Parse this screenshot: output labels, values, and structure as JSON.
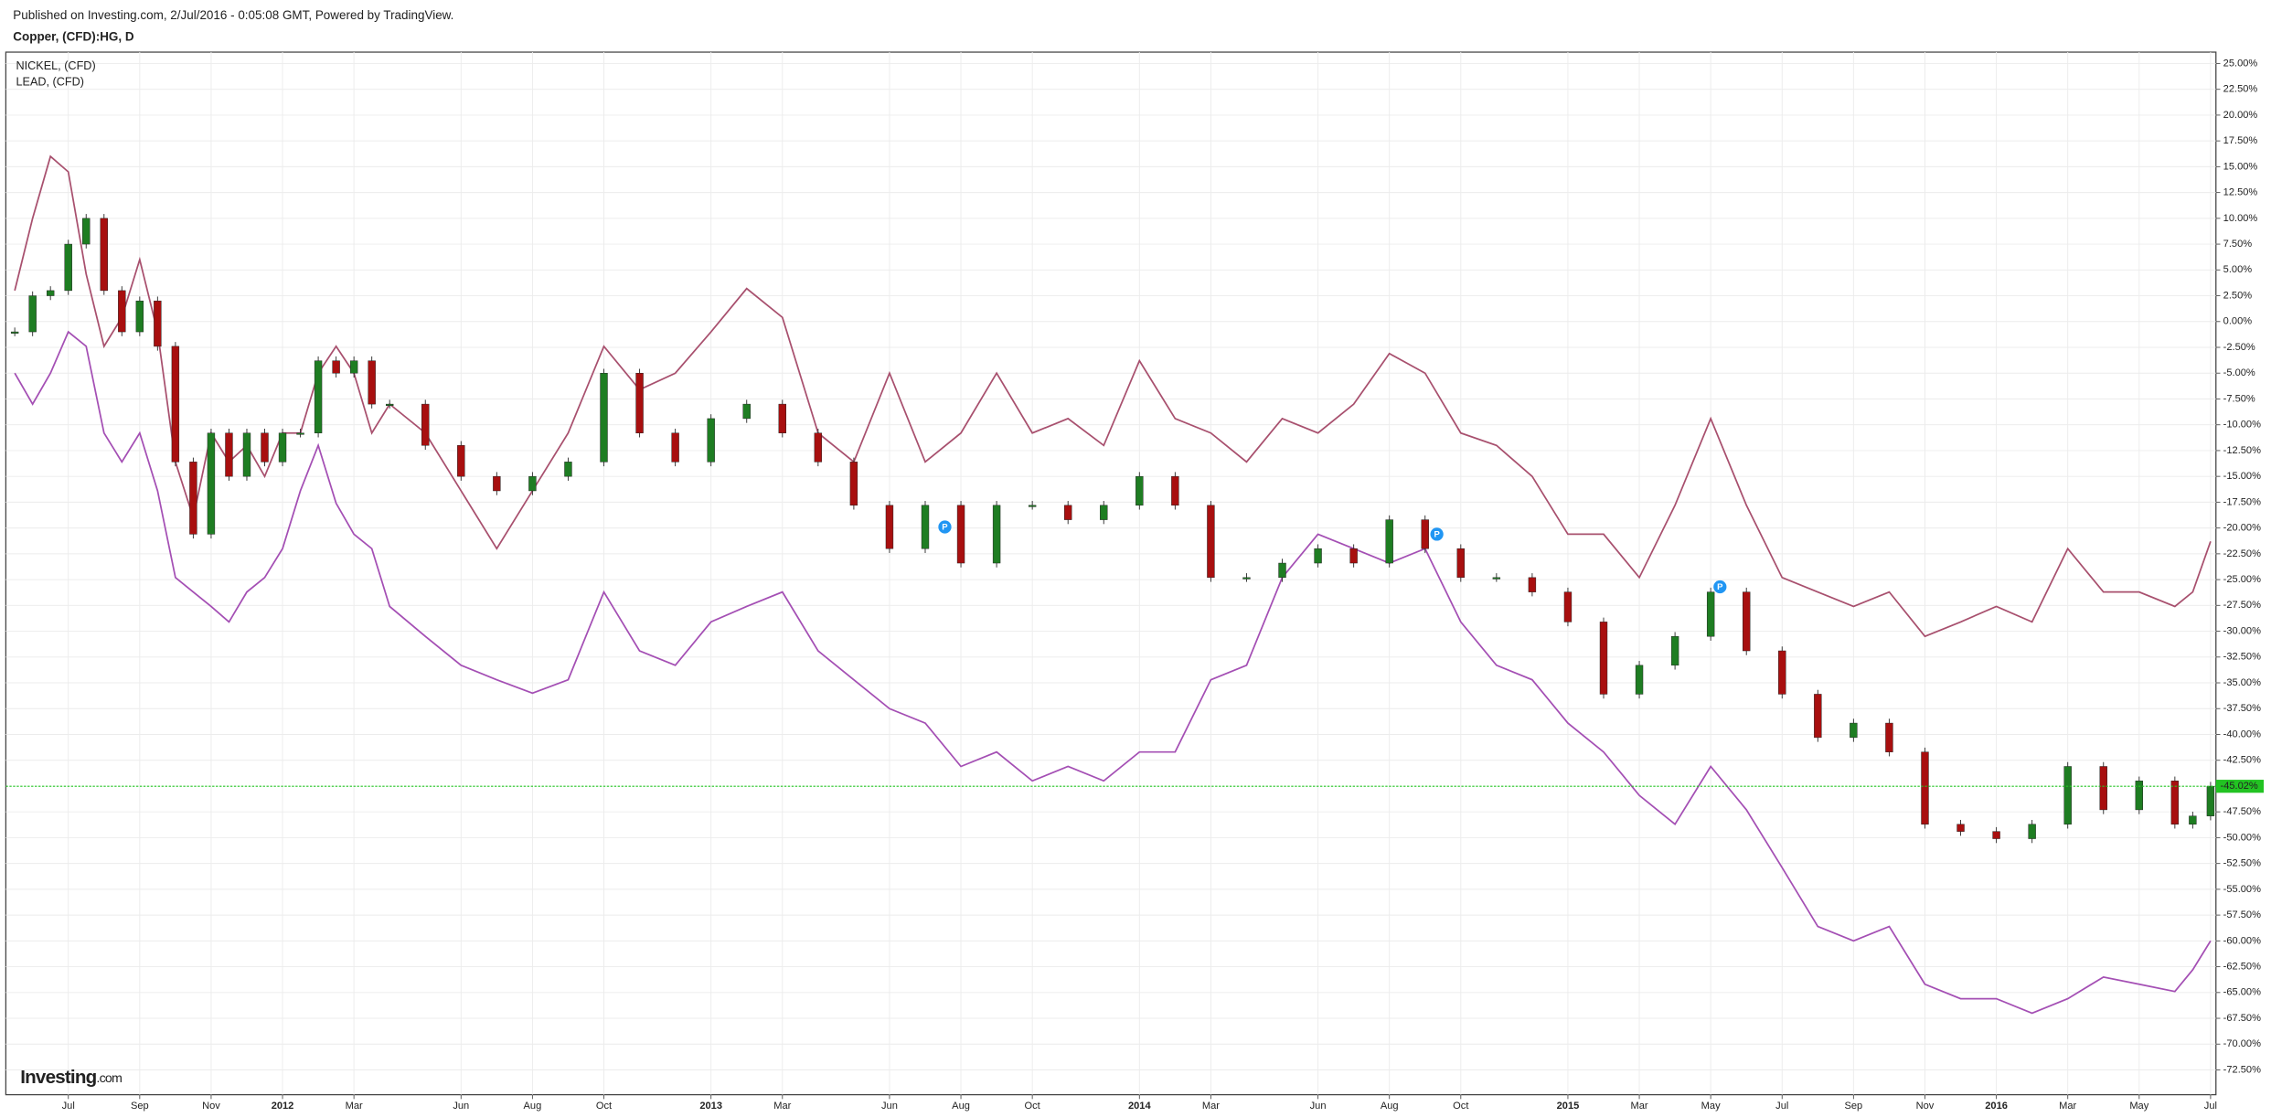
{
  "header": {
    "published": "Published on Investing.com, 2/Jul/2016 - 0:05:08 GMT, Powered by TradingView.",
    "logo": {
      "brand": "Investing",
      "suffix": ".com"
    }
  },
  "chart_data": {
    "type": "line",
    "x": [
      4.5,
      5,
      5.5,
      6,
      6.5,
      7,
      7.5,
      8,
      8.5,
      9,
      9.5,
      10,
      10.5,
      11,
      11.5,
      12,
      12.5,
      13,
      13.5,
      14,
      14.5,
      15,
      16,
      17,
      18,
      19,
      20,
      21,
      22,
      23,
      24,
      25,
      26,
      27,
      28,
      29,
      30,
      31,
      32,
      33,
      34,
      35,
      36,
      37,
      38,
      39,
      40,
      41,
      42,
      43,
      44,
      45,
      46,
      47,
      48,
      49,
      50,
      51,
      52,
      53,
      54,
      55,
      56,
      57,
      58,
      59,
      60,
      61,
      62,
      63,
      64,
      65,
      65.5,
      66
    ],
    "xlim": [
      4.25,
      66.15
    ],
    "xticks": [
      {
        "value": 6,
        "label": "Jul"
      },
      {
        "value": 8,
        "label": "Sep"
      },
      {
        "value": 10,
        "label": "Nov"
      },
      {
        "value": 12,
        "label": "2012"
      },
      {
        "value": 14,
        "label": "Mar"
      },
      {
        "value": 17,
        "label": "Jun"
      },
      {
        "value": 19,
        "label": "Aug"
      },
      {
        "value": 21,
        "label": "Oct"
      },
      {
        "value": 24,
        "label": "2013"
      },
      {
        "value": 26,
        "label": "Mar"
      },
      {
        "value": 29,
        "label": "Jun"
      },
      {
        "value": 31,
        "label": "Aug"
      },
      {
        "value": 33,
        "label": "Oct"
      },
      {
        "value": 36,
        "label": "2014"
      },
      {
        "value": 38,
        "label": "Mar"
      },
      {
        "value": 41,
        "label": "Jun"
      },
      {
        "value": 43,
        "label": "Aug"
      },
      {
        "value": 45,
        "label": "Oct"
      },
      {
        "value": 48,
        "label": "2015"
      },
      {
        "value": 50,
        "label": "Mar"
      },
      {
        "value": 52,
        "label": "May"
      },
      {
        "value": 54,
        "label": "Jul"
      },
      {
        "value": 56,
        "label": "Sep"
      },
      {
        "value": 58,
        "label": "Nov"
      },
      {
        "value": 60,
        "label": "2016"
      },
      {
        "value": 62,
        "label": "Mar"
      },
      {
        "value": 64,
        "label": "May"
      },
      {
        "value": 66,
        "label": "Jul"
      }
    ],
    "ylim": [
      -74.9,
      26.1
    ],
    "yticks": [
      {
        "value": 25,
        "label": "25.00%"
      },
      {
        "value": 22.5,
        "label": "22.50%"
      },
      {
        "value": 20,
        "label": "20.00%"
      },
      {
        "value": 17.5,
        "label": "17.50%"
      },
      {
        "value": 15,
        "label": "15.00%"
      },
      {
        "value": 12.5,
        "label": "12.50%"
      },
      {
        "value": 10,
        "label": "10.00%"
      },
      {
        "value": 7.5,
        "label": "7.50%"
      },
      {
        "value": 5,
        "label": "5.00%"
      },
      {
        "value": 2.5,
        "label": "2.50%"
      },
      {
        "value": 0,
        "label": "0.00%"
      },
      {
        "value": -2.5,
        "label": "-2.50%"
      },
      {
        "value": -5,
        "label": "-5.00%"
      },
      {
        "value": -7.5,
        "label": "-7.50%"
      },
      {
        "value": -10,
        "label": "-10.00%"
      },
      {
        "value": -12.5,
        "label": "-12.50%"
      },
      {
        "value": -15,
        "label": "-15.00%"
      },
      {
        "value": -17.5,
        "label": "-17.50%"
      },
      {
        "value": -20,
        "label": "-20.00%"
      },
      {
        "value": -22.5,
        "label": "-22.50%"
      },
      {
        "value": -25,
        "label": "-25.00%"
      },
      {
        "value": -27.5,
        "label": "-27.50%"
      },
      {
        "value": -30,
        "label": "-30.00%"
      },
      {
        "value": -32.5,
        "label": "-32.50%"
      },
      {
        "value": -35,
        "label": "-35.00%"
      },
      {
        "value": -37.5,
        "label": "-37.50%"
      },
      {
        "value": -40,
        "label": "-40.00%"
      },
      {
        "value": -42.5,
        "label": "-42.50%"
      },
      {
        "value": -47.5,
        "label": "-47.50%"
      },
      {
        "value": -50,
        "label": "-50.00%"
      },
      {
        "value": -52.5,
        "label": "-52.50%"
      },
      {
        "value": -55,
        "label": "-55.00%"
      },
      {
        "value": -57.5,
        "label": "-57.50%"
      },
      {
        "value": -60,
        "label": "-60.00%"
      },
      {
        "value": -62.5,
        "label": "-62.50%"
      },
      {
        "value": -65,
        "label": "-65.00%"
      },
      {
        "value": -67.5,
        "label": "-67.50%"
      },
      {
        "value": -70,
        "label": "-70.00%"
      },
      {
        "value": -72.5,
        "label": "-72.50%"
      }
    ],
    "grid": true,
    "series": [
      {
        "name": "Copper, (CFD):HG, D",
        "type": "candlestick",
        "up_color": "#1e7d22",
        "down_color": "#a80f0f",
        "values": [
          -1,
          2.5,
          3,
          7.5,
          10,
          3,
          -1,
          2,
          -2.4,
          -13.6,
          -20.6,
          -10.8,
          -15,
          -10.8,
          -13.6,
          -10.8,
          -10.8,
          -3.8,
          -5,
          -3.8,
          -8,
          -8,
          -12,
          -15,
          -16.4,
          -15,
          -13.6,
          -5,
          -10.8,
          -13.6,
          -9.4,
          -8,
          -10.8,
          -13.6,
          -17.8,
          -22,
          -17.8,
          -23.4,
          -17.8,
          -17.8,
          -19.2,
          -17.8,
          -15,
          -17.8,
          -24.8,
          -24.8,
          -23.4,
          -22,
          -23.4,
          -19.2,
          -22,
          -24.8,
          -24.8,
          -26.2,
          -29.1,
          -36.1,
          -33.3,
          -30.5,
          -26.2,
          -31.9,
          -36.1,
          -40.3,
          -38.9,
          -41.7,
          -48.7,
          -49.4,
          -50.1,
          -48.7,
          -43.1,
          -47.3,
          -44.5,
          -48.7,
          -47.9,
          -45.02
        ]
      },
      {
        "name": "NICKEL,  (CFD)",
        "type": "line",
        "color": "#a8506e",
        "values": [
          3,
          10,
          16,
          14.5,
          4.6,
          -2.4,
          0.4,
          6,
          -1,
          -13.6,
          -19,
          -10.8,
          -13.6,
          -12,
          -15,
          -10.8,
          -10.8,
          -5,
          -2.4,
          -5,
          -10.8,
          -8,
          -10.8,
          -16.4,
          -22,
          -16.4,
          -10.8,
          -2.4,
          -6.6,
          -5,
          -1,
          3.2,
          0.4,
          -10.8,
          -13.6,
          -5,
          -13.6,
          -10.8,
          -5,
          -10.8,
          -9.4,
          -12,
          -3.8,
          -9.4,
          -10.8,
          -13.6,
          -9.4,
          -10.8,
          -8,
          -3.1,
          -5,
          -10.8,
          -12,
          -15,
          -20.6,
          -20.6,
          -24.8,
          -17.8,
          -9.4,
          -17.8,
          -24.8,
          -26.2,
          -27.6,
          -26.2,
          -30.5,
          -29.1,
          -27.6,
          -29.1,
          -22,
          -26.2,
          -26.2,
          -27.6,
          -26.2,
          -21.3
        ]
      },
      {
        "name": "LEAD,  (CFD)",
        "type": "line",
        "color": "#a44fb4",
        "values": [
          -5,
          -8,
          -5,
          -1,
          -2.4,
          -10.8,
          -13.6,
          -10.8,
          -16.4,
          -24.8,
          -26.2,
          -27.6,
          -29.1,
          -26.2,
          -24.8,
          -22,
          -16.4,
          -12,
          -17.6,
          -20.6,
          -22,
          -27.6,
          -30.5,
          -33.3,
          -34.7,
          -36,
          -34.7,
          -26.2,
          -31.9,
          -33.3,
          -29.1,
          -27.6,
          -26.2,
          -31.9,
          -34.7,
          -37.5,
          -38.9,
          -43.1,
          -41.7,
          -44.5,
          -43.1,
          -44.5,
          -41.7,
          -41.7,
          -34.7,
          -33.3,
          -24.8,
          -20.6,
          -22,
          -23.4,
          -22,
          -29.1,
          -33.3,
          -34.7,
          -38.9,
          -41.7,
          -45.9,
          -48.7,
          -43.1,
          -47.3,
          -52.9,
          -58.6,
          -60,
          -58.6,
          -64.2,
          -65.6,
          -65.6,
          -67,
          -65.6,
          -63.5,
          -64.2,
          -64.9,
          -62.8,
          -60
        ]
      }
    ],
    "current_value": {
      "value": -45.02,
      "label": "-45.02%",
      "color": "#22c322"
    },
    "markers": [
      {
        "x": 30.55,
        "y": -19.9,
        "label": "P"
      },
      {
        "x": 44.33,
        "y": -20.6,
        "label": "P"
      },
      {
        "x": 52.26,
        "y": -25.7,
        "label": "P"
      }
    ]
  }
}
